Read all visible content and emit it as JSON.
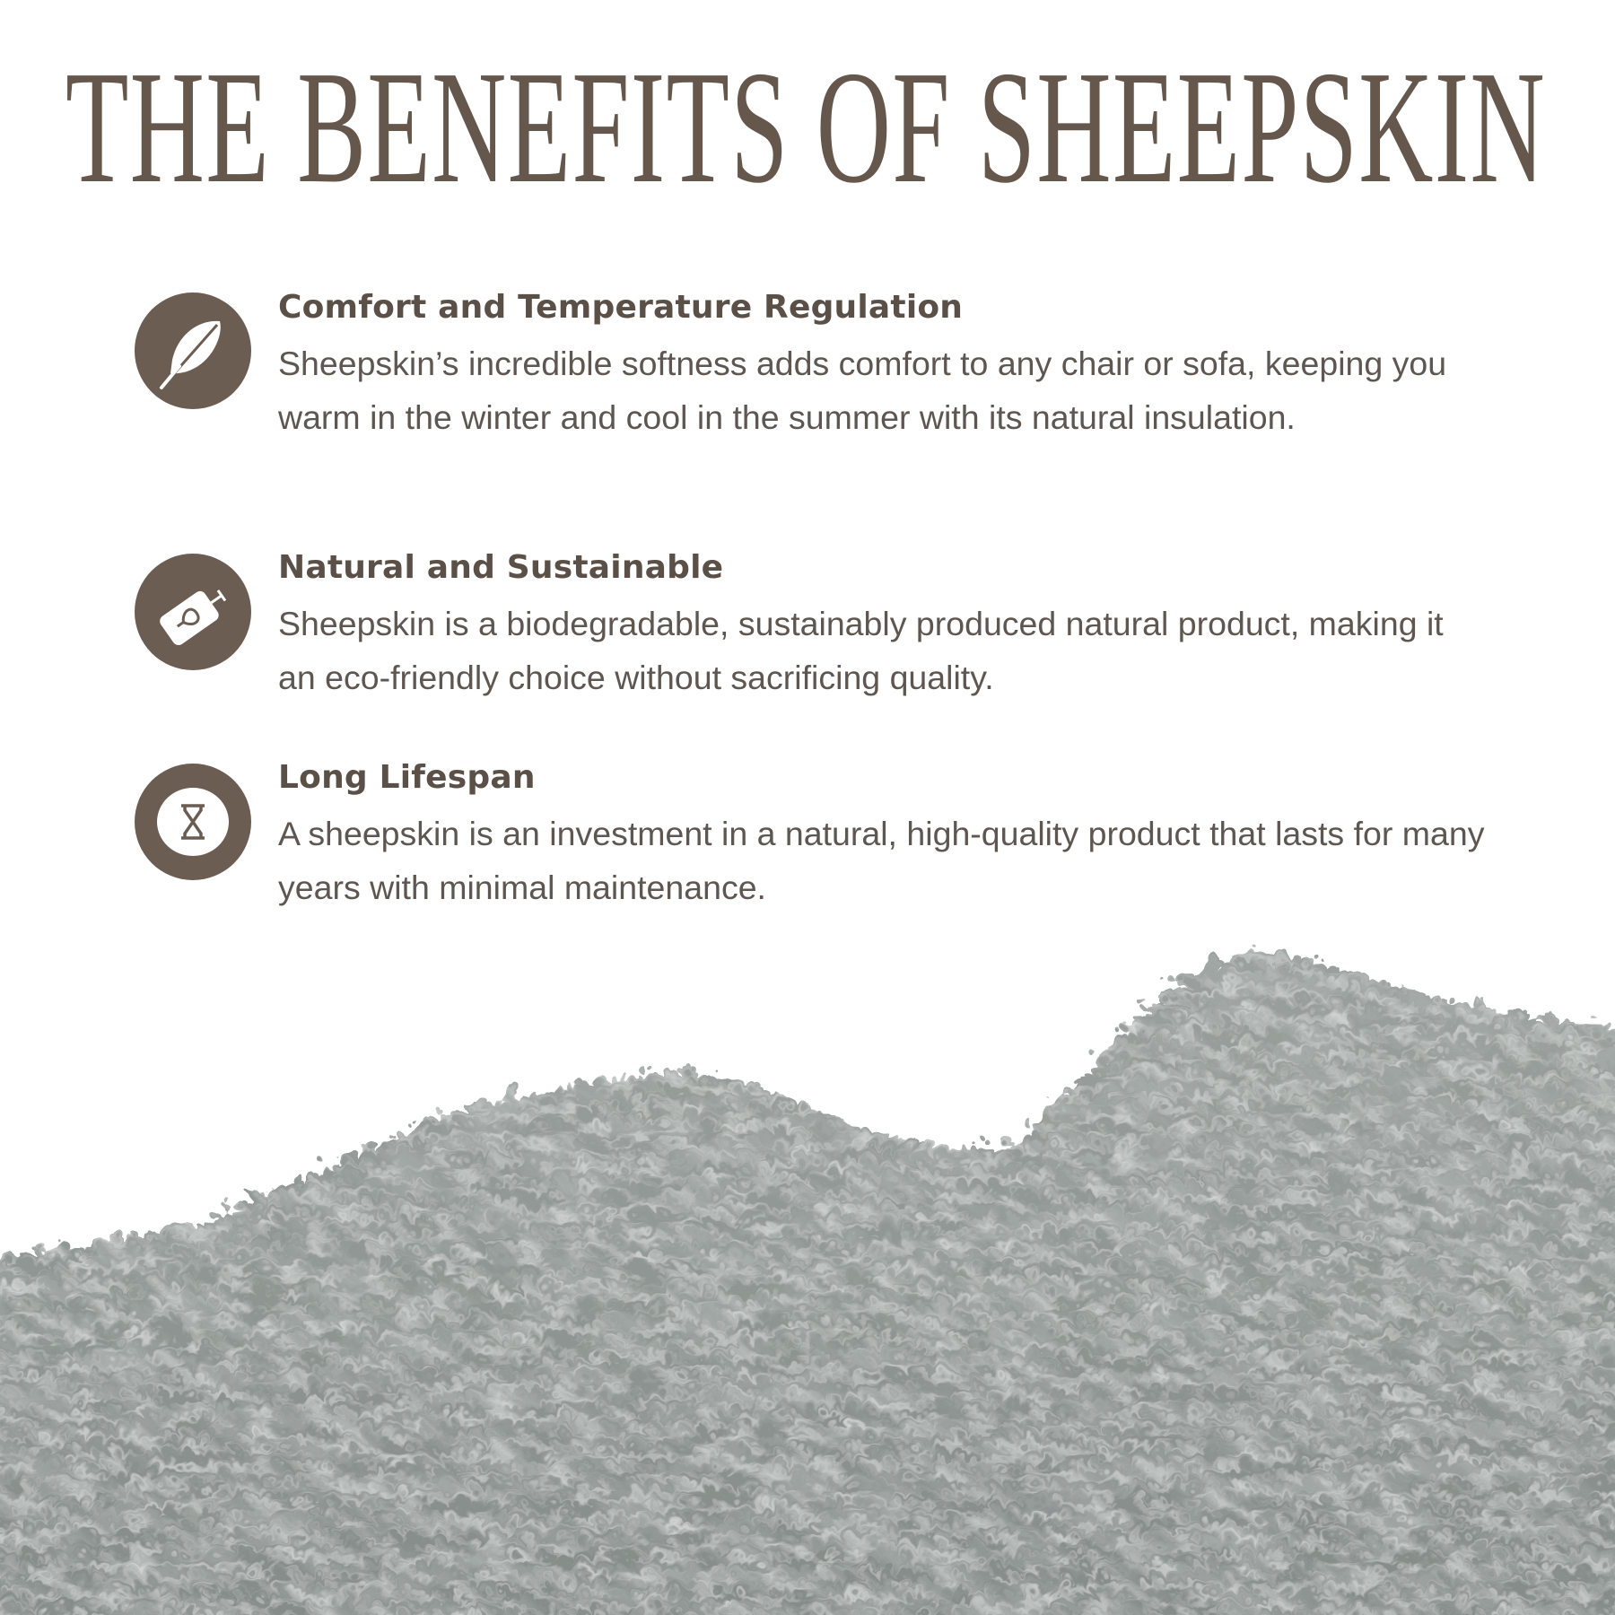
{
  "title": "THE BENEFITS OF SHEEPSKIN",
  "colors": {
    "title": "#65574b",
    "icon_bg": "#6b5d52",
    "text": "#5e5650",
    "fur": "#8a918e"
  },
  "benefits": [
    {
      "icon": "feather-icon",
      "heading": "Comfort and Temperature Regulation",
      "body": "Sheepskin’s incredible softness adds comfort to any chair or sofa, keeping you warm in the winter and cool in the summer with its natural insulation."
    },
    {
      "icon": "eco-tag-icon",
      "heading": "Natural and Sustainable",
      "body": "Sheepskin is a biodegradable, sustainably produced natural product, making it an eco-friendly choice without sacrificing quality."
    },
    {
      "icon": "hourglass-icon",
      "heading": "Long Lifespan",
      "body": "A sheepskin is an investment in a natural, high-quality product that lasts for many years with minimal maintenance."
    }
  ]
}
